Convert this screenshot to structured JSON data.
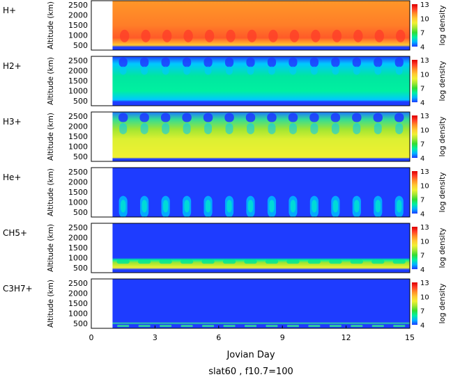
{
  "chart_data": {
    "type": "heatmap",
    "title": "slat60 , f10.7=100",
    "xlabel": "Jovian Day",
    "ylabel": "Altitude (km)",
    "colorbar_label": "log density",
    "xlim": [
      0,
      15
    ],
    "ylim": [
      250,
      2700
    ],
    "x_ticks": [
      0,
      3,
      6,
      9,
      12,
      15
    ],
    "x_tick_labels": [
      "0",
      "3",
      "6",
      "9",
      "12",
      "15"
    ],
    "y_ticks": [
      500,
      1000,
      1500,
      2000,
      2500
    ],
    "y_tick_labels": [
      "500",
      "1000",
      "1500",
      "2000",
      "2500"
    ],
    "color_range": [
      4,
      13
    ],
    "colorbar_ticks": [
      4,
      7,
      10,
      13
    ],
    "colorbar_tick_labels": [
      "4",
      "7",
      "10",
      "13"
    ],
    "data_start_day": 1,
    "colormap": [
      "#1e3cff",
      "#00b4ff",
      "#00f0a0",
      "#32dc32",
      "#a0e632",
      "#f0f032",
      "#ffc832",
      "#ff8c28",
      "#ff3c28",
      "#dc0000"
    ],
    "panels": [
      {
        "name": "H+",
        "pattern": "hplus"
      },
      {
        "name": "H2+",
        "pattern": "h2plus"
      },
      {
        "name": "H3+",
        "pattern": "h3plus"
      },
      {
        "name": "He+",
        "pattern": "heplus"
      },
      {
        "name": "CH5+",
        "pattern": "ch5plus"
      },
      {
        "name": "C3H7+",
        "pattern": "c3h7plus"
      }
    ]
  }
}
